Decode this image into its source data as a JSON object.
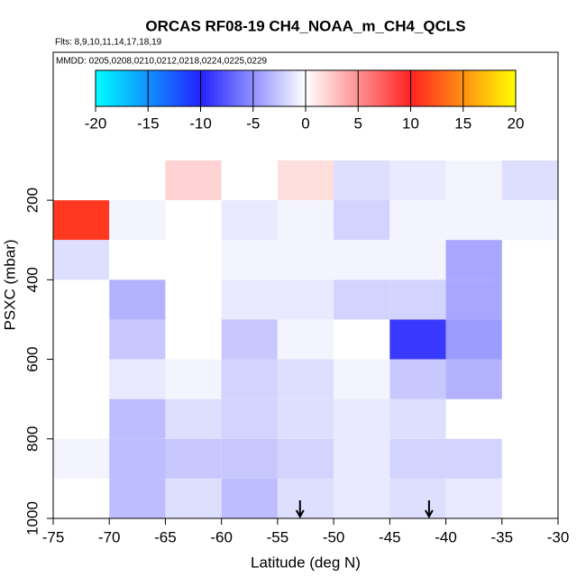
{
  "chart_data": {
    "type": "heatmap",
    "title": "ORCAS RF08-19 CH4_NOAA_m_CH4_QCLS",
    "subtitle": "Flts: 8,9,10,11,14,17,18,19",
    "annotation": "MMDD: 0205,0208,0210,0212,0218,0224,0225,0229",
    "x_label": "Latitude (deg N)",
    "y_label": "PSXC (mbar)",
    "xlim": [
      -75,
      -30
    ],
    "xticks": [
      -75,
      -70,
      -65,
      -60,
      -55,
      -50,
      -45,
      -40,
      -35,
      -30
    ],
    "ylim": [
      1000,
      -172
    ],
    "yticks": [
      200,
      400,
      600,
      800,
      1000
    ],
    "xbins": [
      -75,
      -70,
      -65,
      -60,
      -55,
      -50,
      -45,
      -40,
      -35,
      -30
    ],
    "ybins": [
      100,
      200,
      300,
      400,
      500,
      600,
      700,
      800,
      900,
      1000
    ],
    "values": [
      [
        null,
        null,
        2,
        null,
        1.5,
        -1.5,
        -1,
        -0.5,
        -1.5
      ],
      [
        11,
        -0.5,
        0,
        -1,
        -0.5,
        -2,
        -0.5,
        -0.5,
        -0.5
      ],
      [
        -1.5,
        0,
        0,
        -0.5,
        -0.5,
        -0.5,
        -0.5,
        -4,
        null
      ],
      [
        null,
        -3.5,
        0,
        -1,
        -1,
        -2,
        -2,
        -4,
        null
      ],
      [
        null,
        -2.5,
        0,
        -2.5,
        -0.5,
        0,
        -9,
        -4.5,
        null
      ],
      [
        0,
        -1,
        -0.5,
        -2,
        -1.5,
        -0.5,
        -2.5,
        -3.5,
        null
      ],
      [
        null,
        -3,
        -1.5,
        -2,
        -1.5,
        -1,
        -1.5,
        null,
        null
      ],
      [
        -0.5,
        -3,
        -2.5,
        -2.5,
        -2,
        -1,
        -2,
        -2,
        null
      ],
      [
        0,
        -3,
        -1.5,
        -3,
        -1.5,
        -1,
        -1.5,
        -1,
        null
      ]
    ],
    "colorscale": [
      [
        -20,
        "#00ffff"
      ],
      [
        -10,
        "#2222ff"
      ],
      [
        0,
        "#ffffff"
      ],
      [
        10,
        "#ff2222"
      ],
      [
        20,
        "#ffff00"
      ]
    ],
    "colorbar_lim": [
      -20,
      20
    ],
    "colorbar_ticks": [
      -20,
      -15,
      -10,
      -5,
      0,
      5,
      10,
      15,
      20
    ],
    "arrows": [
      -53,
      -41.5
    ]
  }
}
